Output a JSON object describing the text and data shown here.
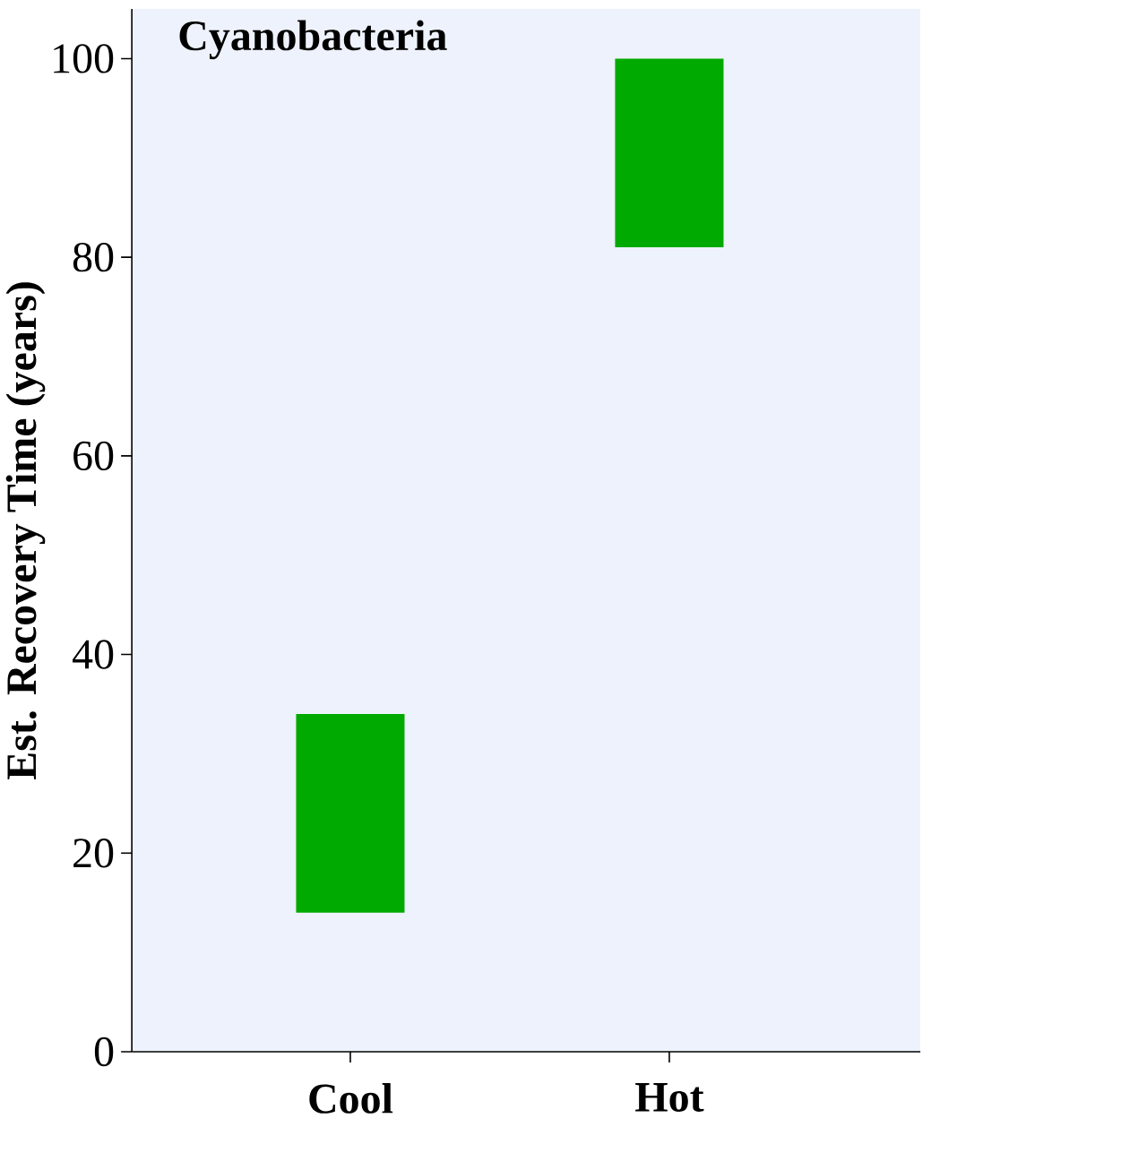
{
  "chart_data": {
    "type": "bar",
    "title": "Cyanobacteria",
    "ylabel": "Est. Recovery Time (years)",
    "categories": [
      "Cool",
      "Hot"
    ],
    "base": [
      14,
      81
    ],
    "values": [
      20,
      19
    ],
    "color": "#00aa00",
    "ylim": [
      0,
      105
    ],
    "yticks": [
      0,
      20,
      40,
      60,
      80,
      100
    ]
  }
}
